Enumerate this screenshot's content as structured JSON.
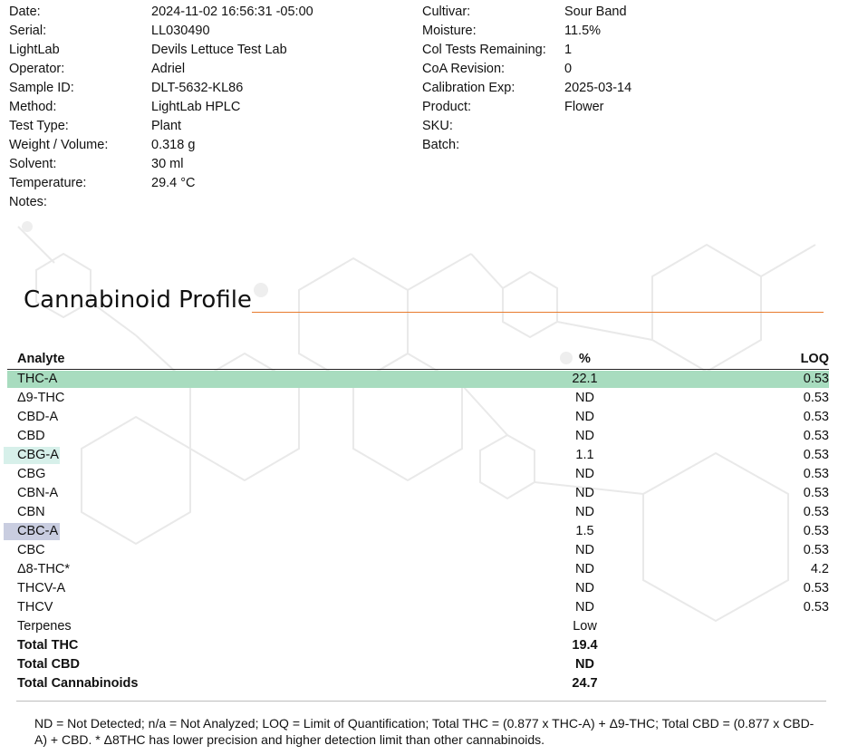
{
  "meta_left": [
    {
      "label": "Date:",
      "value": "2024-11-02 16:56:31 -05:00"
    },
    {
      "label": "Serial:",
      "value": "LL030490"
    },
    {
      "label": "LightLab",
      "value": "Devils Lettuce Test Lab"
    },
    {
      "label": "Operator:",
      "value": "Adriel"
    },
    {
      "label": "Sample ID:",
      "value": "DLT-5632-KL86"
    },
    {
      "label": "Method:",
      "value": "LightLab HPLC"
    },
    {
      "label": "Test Type:",
      "value": "Plant"
    },
    {
      "label": "Weight / Volume:",
      "value": "0.318 g"
    },
    {
      "label": "Solvent:",
      "value": "30 ml"
    },
    {
      "label": "Temperature:",
      "value": "29.4 °C"
    },
    {
      "label": "Notes:",
      "value": ""
    }
  ],
  "meta_right": [
    {
      "label": "Cultivar:",
      "value": "Sour Band"
    },
    {
      "label": "Moisture:",
      "value": "11.5%"
    },
    {
      "label": "Col Tests Remaining:",
      "value": "1"
    },
    {
      "label": "CoA Revision:",
      "value": "0"
    },
    {
      "label": "Calibration Exp:",
      "value": "2025-03-14"
    },
    {
      "label": "Product:",
      "value": "Flower"
    },
    {
      "label": "SKU:",
      "value": ""
    },
    {
      "label": "Batch:",
      "value": ""
    }
  ],
  "section_title": "Cannabinoid Profile",
  "colors": {
    "accent_rule": "#e87a2d",
    "thca": "#a8dcbf",
    "cbga": "#d7f0ea",
    "cbca": "#c9cde0"
  },
  "table": {
    "headers": {
      "analyte": "Analyte",
      "percent": "%",
      "loq": "LOQ"
    },
    "rows": [
      {
        "analyte": "THC-A",
        "percent": "22.1",
        "loq": "0.53",
        "highlight": "thca",
        "highlight_scope": "full",
        "bold": false
      },
      {
        "analyte": "Δ9-THC",
        "percent": "ND",
        "loq": "0.53",
        "bold": false
      },
      {
        "analyte": "CBD-A",
        "percent": "ND",
        "loq": "0.53",
        "bold": false
      },
      {
        "analyte": "CBD",
        "percent": "ND",
        "loq": "0.53",
        "bold": false
      },
      {
        "analyte": "CBG-A",
        "percent": "1.1",
        "loq": "0.53",
        "highlight": "cbga",
        "highlight_scope": "label",
        "bold": false
      },
      {
        "analyte": "CBG",
        "percent": "ND",
        "loq": "0.53",
        "bold": false
      },
      {
        "analyte": "CBN-A",
        "percent": "ND",
        "loq": "0.53",
        "bold": false
      },
      {
        "analyte": "CBN",
        "percent": "ND",
        "loq": "0.53",
        "bold": false
      },
      {
        "analyte": "CBC-A",
        "percent": "1.5",
        "loq": "0.53",
        "highlight": "cbca",
        "highlight_scope": "label",
        "bold": false
      },
      {
        "analyte": "CBC",
        "percent": "ND",
        "loq": "0.53",
        "bold": false
      },
      {
        "analyte": "Δ8-THC*",
        "percent": "ND",
        "loq": "4.2",
        "bold": false
      },
      {
        "analyte": "THCV-A",
        "percent": "ND",
        "loq": "0.53",
        "bold": false
      },
      {
        "analyte": "THCV",
        "percent": "ND",
        "loq": "0.53",
        "bold": false
      },
      {
        "analyte": "Terpenes",
        "percent": "Low",
        "loq": "",
        "bold": false
      },
      {
        "analyte": "Total THC",
        "percent": "19.4",
        "loq": "",
        "bold": true
      },
      {
        "analyte": "Total CBD",
        "percent": "ND",
        "loq": "",
        "bold": true
      },
      {
        "analyte": "Total Cannabinoids",
        "percent": "24.7",
        "loq": "",
        "bold": true
      }
    ]
  },
  "footnote": "ND = Not Detected; n/a = Not Analyzed;  LOQ = Limit of Quantification; Total THC = (0.877 x THC-A) + Δ9-THC; Total CBD = (0.877 x CBD-A) + CBD. * Δ8THC has lower precision and higher detection limit than other cannabinoids."
}
